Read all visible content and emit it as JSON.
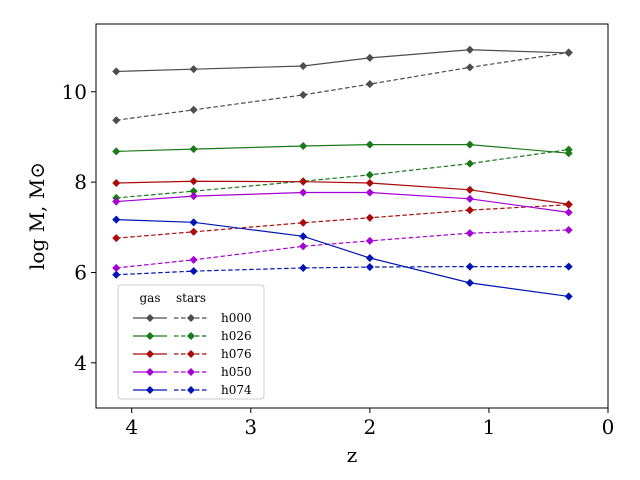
{
  "chart_data": {
    "type": "line",
    "xlabel": "z",
    "ylabel": "log M, M⊙",
    "xlim": [
      4.3,
      0.0
    ],
    "ylim": [
      3.0,
      11.5
    ],
    "xticks": [
      4,
      3,
      2,
      1,
      0
    ],
    "yticks": [
      4,
      6,
      8,
      10
    ],
    "x": [
      4.13,
      3.48,
      2.56,
      2.0,
      1.16,
      0.33
    ],
    "legend": {
      "placement": "lower-left",
      "headers": {
        "gas": "gas",
        "stars": "stars"
      }
    },
    "series": [
      {
        "name": "h000",
        "color": "#4d4d4d",
        "gas": [
          10.45,
          10.5,
          10.57,
          10.75,
          10.93,
          10.86
        ],
        "stars": [
          9.37,
          9.6,
          9.93,
          10.17,
          10.54,
          10.87
        ]
      },
      {
        "name": "h026",
        "color": "#1a7a1a",
        "gas": [
          8.68,
          8.73,
          8.8,
          8.83,
          8.83,
          8.64
        ],
        "stars": [
          7.65,
          7.8,
          8.02,
          8.16,
          8.41,
          8.72
        ]
      },
      {
        "name": "h076",
        "color": "#aa0a0a",
        "gas": [
          7.98,
          8.02,
          8.01,
          7.98,
          7.83,
          7.51
        ],
        "stars": [
          6.76,
          6.9,
          7.1,
          7.21,
          7.38,
          7.5
        ]
      },
      {
        "name": "h050",
        "color": "#a600d6",
        "gas": [
          7.57,
          7.69,
          7.77,
          7.77,
          7.63,
          7.33
        ],
        "stars": [
          6.1,
          6.28,
          6.58,
          6.7,
          6.87,
          6.94
        ]
      },
      {
        "name": "h074",
        "color": "#0014b4",
        "gas": [
          7.17,
          7.11,
          6.8,
          6.32,
          5.77,
          5.47
        ],
        "stars": [
          5.95,
          6.03,
          6.1,
          6.12,
          6.13,
          6.13
        ]
      }
    ]
  }
}
